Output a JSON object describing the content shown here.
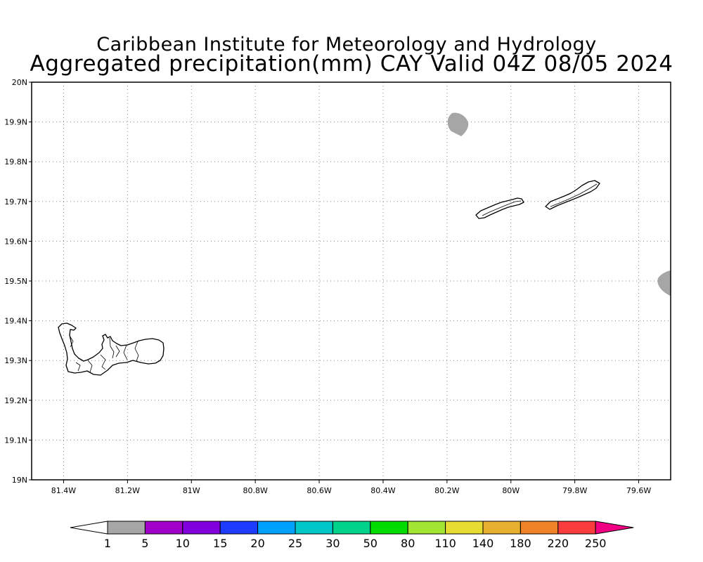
{
  "title": {
    "line1": "Caribbean Institute for Meteorology and Hydrology",
    "line2": "Aggregated precipitation(mm) CAY Valid 04Z 08/05 2024"
  },
  "map": {
    "x_ticks": [
      {
        "lon": -81.4,
        "label": "81.4W"
      },
      {
        "lon": -81.2,
        "label": "81.2W"
      },
      {
        "lon": -81.0,
        "label": "81W"
      },
      {
        "lon": -80.8,
        "label": "80.8W"
      },
      {
        "lon": -80.6,
        "label": "80.6W"
      },
      {
        "lon": -80.4,
        "label": "80.4W"
      },
      {
        "lon": -80.2,
        "label": "80.2W"
      },
      {
        "lon": -80.0,
        "label": "80W"
      },
      {
        "lon": -79.8,
        "label": "79.8W"
      },
      {
        "lon": -79.6,
        "label": "79.6W"
      }
    ],
    "y_ticks": [
      {
        "lat": 20.0,
        "label": "20N"
      },
      {
        "lat": 19.9,
        "label": "19.9N"
      },
      {
        "lat": 19.8,
        "label": "19.8N"
      },
      {
        "lat": 19.7,
        "label": "19.7N"
      },
      {
        "lat": 19.6,
        "label": "19.6N"
      },
      {
        "lat": 19.5,
        "label": "19.5N"
      },
      {
        "lat": 19.4,
        "label": "19.4N"
      },
      {
        "lat": 19.3,
        "label": "19.3N"
      },
      {
        "lat": 19.2,
        "label": "19.2N"
      },
      {
        "lat": 19.1,
        "label": "19.1N"
      },
      {
        "lat": 19.0,
        "label": "19N"
      }
    ],
    "lon_range": [
      -81.5,
      -79.5
    ],
    "lat_range": [
      19.0,
      20.0
    ],
    "grid": "dotted",
    "land_features": [
      "Grand Cayman",
      "Little Cayman",
      "Cayman Brac"
    ],
    "precip_areas": [
      {
        "lon": -80.17,
        "lat": 19.9,
        "class": "1-5 mm",
        "color": "#a6a6a6"
      },
      {
        "lon": -79.51,
        "lat": 19.5,
        "class": "1-5 mm",
        "color": "#a6a6a6"
      }
    ]
  },
  "legend": {
    "labels": [
      "1",
      "5",
      "10",
      "15",
      "20",
      "25",
      "30",
      "50",
      "80",
      "110",
      "140",
      "180",
      "220",
      "250"
    ],
    "colors": [
      "#a6a6a6",
      "#a000c8",
      "#8200dc",
      "#1e3cff",
      "#00a0ff",
      "#00c8c8",
      "#00d28c",
      "#00dc00",
      "#a0e632",
      "#e6dc32",
      "#e6af2d",
      "#f08228",
      "#fa3c3c",
      "#f00082"
    ],
    "low_arrow_color": "#ffffff"
  }
}
